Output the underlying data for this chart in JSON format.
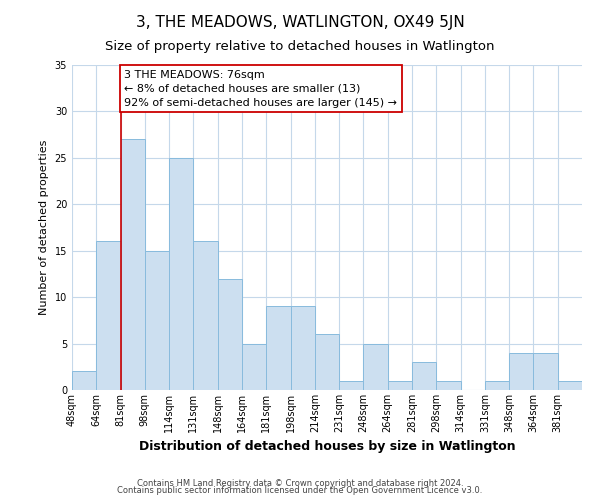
{
  "title": "3, THE MEADOWS, WATLINGTON, OX49 5JN",
  "subtitle": "Size of property relative to detached houses in Watlington",
  "xlabel": "Distribution of detached houses by size in Watlington",
  "ylabel": "Number of detached properties",
  "bin_labels": [
    "48sqm",
    "64sqm",
    "81sqm",
    "98sqm",
    "114sqm",
    "131sqm",
    "148sqm",
    "164sqm",
    "181sqm",
    "198sqm",
    "214sqm",
    "231sqm",
    "248sqm",
    "264sqm",
    "281sqm",
    "298sqm",
    "314sqm",
    "331sqm",
    "348sqm",
    "364sqm",
    "381sqm"
  ],
  "bar_values": [
    2,
    16,
    27,
    15,
    25,
    16,
    12,
    5,
    9,
    9,
    6,
    1,
    5,
    1,
    3,
    1,
    0,
    1,
    4,
    4,
    1
  ],
  "bar_color": "#ccdff0",
  "bar_edge_color": "#88bbdd",
  "vline_x_idx": 2,
  "vline_color": "#cc0000",
  "annotation_text": "3 THE MEADOWS: 76sqm\n← 8% of detached houses are smaller (13)\n92% of semi-detached houses are larger (145) →",
  "annotation_box_facecolor": "#ffffff",
  "annotation_box_edgecolor": "#cc0000",
  "ylim": [
    0,
    35
  ],
  "yticks": [
    0,
    5,
    10,
    15,
    20,
    25,
    30,
    35
  ],
  "footer1": "Contains HM Land Registry data © Crown copyright and database right 2024.",
  "footer2": "Contains public sector information licensed under the Open Government Licence v3.0.",
  "bg_color": "#ffffff",
  "grid_color": "#c5d8ea",
  "title_fontsize": 11,
  "subtitle_fontsize": 9.5,
  "tick_fontsize": 7,
  "ylabel_fontsize": 8,
  "xlabel_fontsize": 9,
  "annotation_fontsize": 8,
  "footer_fontsize": 6
}
